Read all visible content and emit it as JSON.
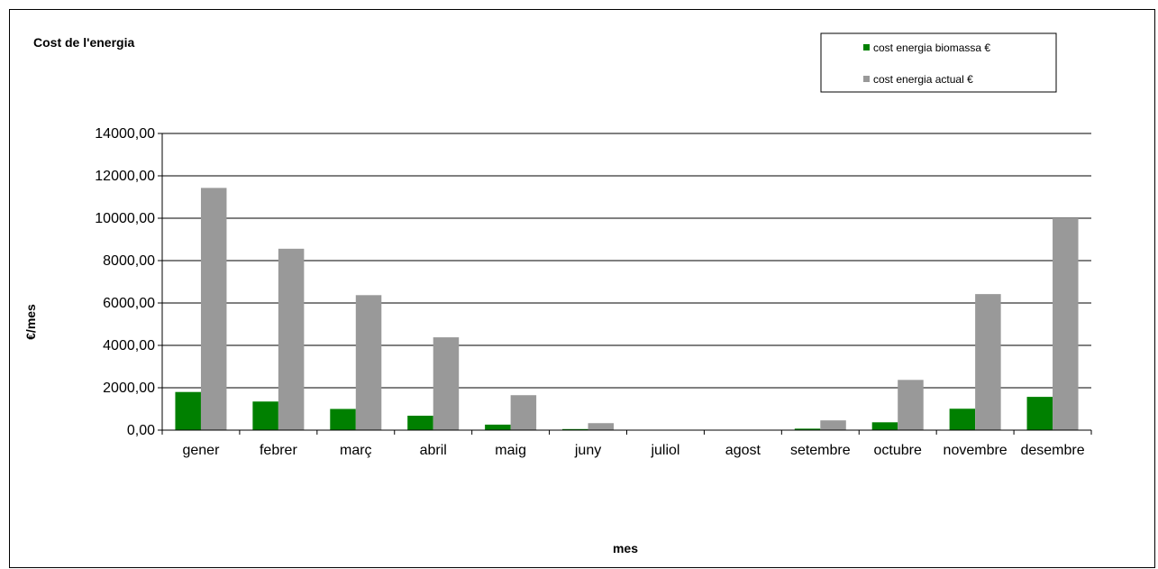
{
  "chart_data": {
    "type": "bar",
    "title": "Cost de l'energia",
    "xlabel": "mes",
    "ylabel": "€/mes",
    "ylim": [
      0,
      14000
    ],
    "y_ticks": [
      "0,00",
      "2000,00",
      "4000,00",
      "6000,00",
      "8000,00",
      "10000,00",
      "12000,00",
      "14000,00"
    ],
    "categories": [
      "gener",
      "febrer",
      "març",
      "abril",
      "maig",
      "juny",
      "juliol",
      "agost",
      "setembre",
      "octubre",
      "novembre",
      "desembre"
    ],
    "series": [
      {
        "name": "cost energia biomassa €",
        "color": "#008000",
        "values": [
          1800,
          1350,
          1000,
          680,
          260,
          50,
          0,
          0,
          70,
          370,
          1010,
          1570
        ]
      },
      {
        "name": "cost energia actual €",
        "color": "#999999",
        "values": [
          11430,
          8560,
          6370,
          4380,
          1650,
          330,
          0,
          0,
          460,
          2370,
          6420,
          10000
        ]
      }
    ],
    "grid": true,
    "legend_position": "top-right"
  }
}
